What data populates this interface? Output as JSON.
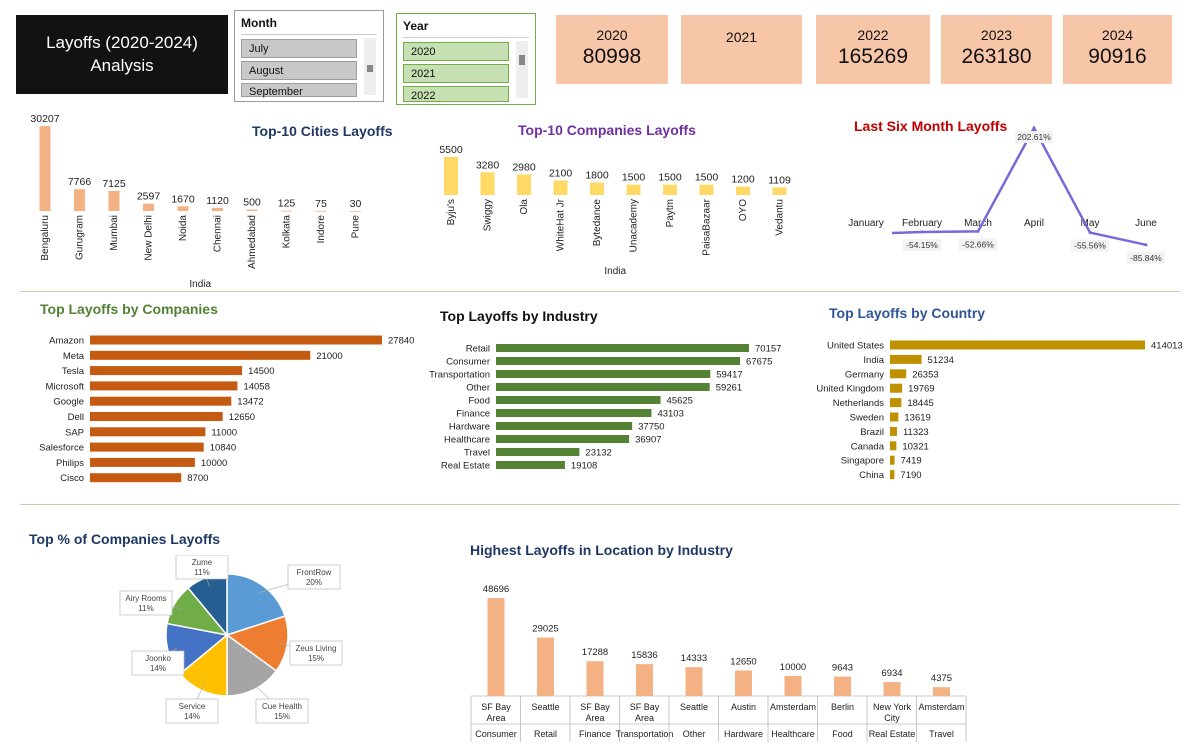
{
  "dashboard": {
    "title_line1": "Layoffs (2020-2024)",
    "title_line2": "Analysis"
  },
  "slicers": {
    "month": {
      "header": "Month",
      "items": [
        "July",
        "August",
        "September"
      ]
    },
    "year": {
      "header": "Year",
      "items": [
        "2020",
        "2021",
        "2022"
      ]
    }
  },
  "cards": [
    {
      "year": "2020",
      "value": "80998"
    },
    {
      "year": "2021",
      "value": ""
    },
    {
      "year": "2022",
      "value": "165269"
    },
    {
      "year": "2023",
      "value": "263180"
    },
    {
      "year": "2024",
      "value": "90916"
    }
  ],
  "colors": {
    "cities": "#f4b183",
    "companies_top10": "#ffd966",
    "line": "#7b68d8",
    "companies": "#c55a11",
    "industry": "#548235",
    "country": "#bf9000",
    "location": "#f4b183",
    "title_blue": "#1f3864",
    "title_purple": "#7030a0",
    "title_red": "#c00000",
    "title_green": "#538135",
    "title_steel": "#2f5597"
  },
  "chart_data": [
    {
      "id": "cities",
      "type": "bar",
      "title": "Top-10 Cities Layoffs",
      "xlabel": "India",
      "categories": [
        "Bengaluru",
        "Gurugram",
        "Mumbai",
        "New Delhi",
        "Noida",
        "Chennai",
        "Ahmedabad",
        "Kolkata",
        "Indore",
        "Pune"
      ],
      "values": [
        30207,
        7766,
        7125,
        2597,
        1670,
        1120,
        500,
        125,
        75,
        30
      ]
    },
    {
      "id": "companies_top10",
      "type": "bar",
      "title": "Top-10 Companies Layoffs",
      "xlabel": "India",
      "categories": [
        "Byju's",
        "Swiggy",
        "Ola",
        "WhiteHat Jr",
        "Bytedance",
        "Unacademy",
        "Paytm",
        "PaisaBazaar",
        "OYO",
        "Vedantu"
      ],
      "values": [
        5500,
        3280,
        2980,
        2100,
        1800,
        1500,
        1500,
        1500,
        1200,
        1109
      ]
    },
    {
      "id": "six_month",
      "type": "line",
      "title": "Last Six Month Layoffs",
      "categories": [
        "January",
        "February",
        "March",
        "April",
        "May",
        "June"
      ],
      "values": [
        null,
        -54.15,
        -52.66,
        202.61,
        -55.56,
        -85.84
      ],
      "labels": [
        "",
        "-54.15%",
        "-52.66%",
        "202.61%",
        "-55.56%",
        "-85.84%"
      ]
    },
    {
      "id": "companies",
      "type": "bar",
      "orientation": "horizontal",
      "title": "Top Layoffs by Companies",
      "categories": [
        "Amazon",
        "Meta",
        "Tesla",
        "Microsoft",
        "Google",
        "Dell",
        "SAP",
        "Salesforce",
        "Philips",
        "Cisco"
      ],
      "values": [
        27840,
        21000,
        14500,
        14058,
        13472,
        12650,
        11000,
        10840,
        10000,
        8700
      ]
    },
    {
      "id": "industry",
      "type": "bar",
      "orientation": "horizontal",
      "title": "Top Layoffs by Industry",
      "categories": [
        "Retail",
        "Consumer",
        "Transportation",
        "Other",
        "Food",
        "Finance",
        "Hardware",
        "Healthcare",
        "Travel",
        "Real Estate"
      ],
      "values": [
        70157,
        67675,
        59417,
        59261,
        45625,
        43103,
        37750,
        36907,
        23132,
        19108
      ]
    },
    {
      "id": "country",
      "type": "bar",
      "orientation": "horizontal",
      "title": "Top Layoffs by Country",
      "categories": [
        "United States",
        "India",
        "Germany",
        "United Kingdom",
        "Netherlands",
        "Sweden",
        "Brazil",
        "Canada",
        "Singapore",
        "China"
      ],
      "values": [
        414013,
        51234,
        26353,
        19769,
        18445,
        13619,
        11323,
        10321,
        7419,
        7190
      ]
    },
    {
      "id": "pie",
      "type": "pie",
      "title": "Top % of Companies Layoffs",
      "categories": [
        "FrontRow",
        "Zeus Living",
        "Cue Health",
        "Service",
        "Joonko",
        "Airy Rooms",
        "Zume"
      ],
      "values": [
        20,
        15,
        15,
        14,
        14,
        11,
        11
      ],
      "labels": [
        "20%",
        "15%",
        "15%",
        "14%",
        "14%",
        "11%",
        "11%"
      ],
      "colors": [
        "#5b9bd5",
        "#ed7d31",
        "#a5a5a5",
        "#ffc000",
        "#4472c4",
        "#70ad47",
        "#255e91"
      ]
    },
    {
      "id": "location",
      "type": "bar",
      "title": "Highest Layoffs in Location by  Industry",
      "categories": [
        {
          "location": "SF Bay Area",
          "industry": "Consumer"
        },
        {
          "location": "Seattle",
          "industry": "Retail"
        },
        {
          "location": "SF Bay Area",
          "industry": "Finance"
        },
        {
          "location": "SF Bay Area",
          "industry": "Transportation"
        },
        {
          "location": "Seattle",
          "industry": "Other"
        },
        {
          "location": "Austin",
          "industry": "Hardware"
        },
        {
          "location": "Amsterdam",
          "industry": "Healthcare"
        },
        {
          "location": "Berlin",
          "industry": "Food"
        },
        {
          "location": "New York City",
          "industry": "Real Estate"
        },
        {
          "location": "Amsterdam",
          "industry": "Travel"
        }
      ],
      "values": [
        48696,
        29025,
        17288,
        15836,
        14333,
        12650,
        10000,
        9643,
        6934,
        4375
      ]
    }
  ]
}
